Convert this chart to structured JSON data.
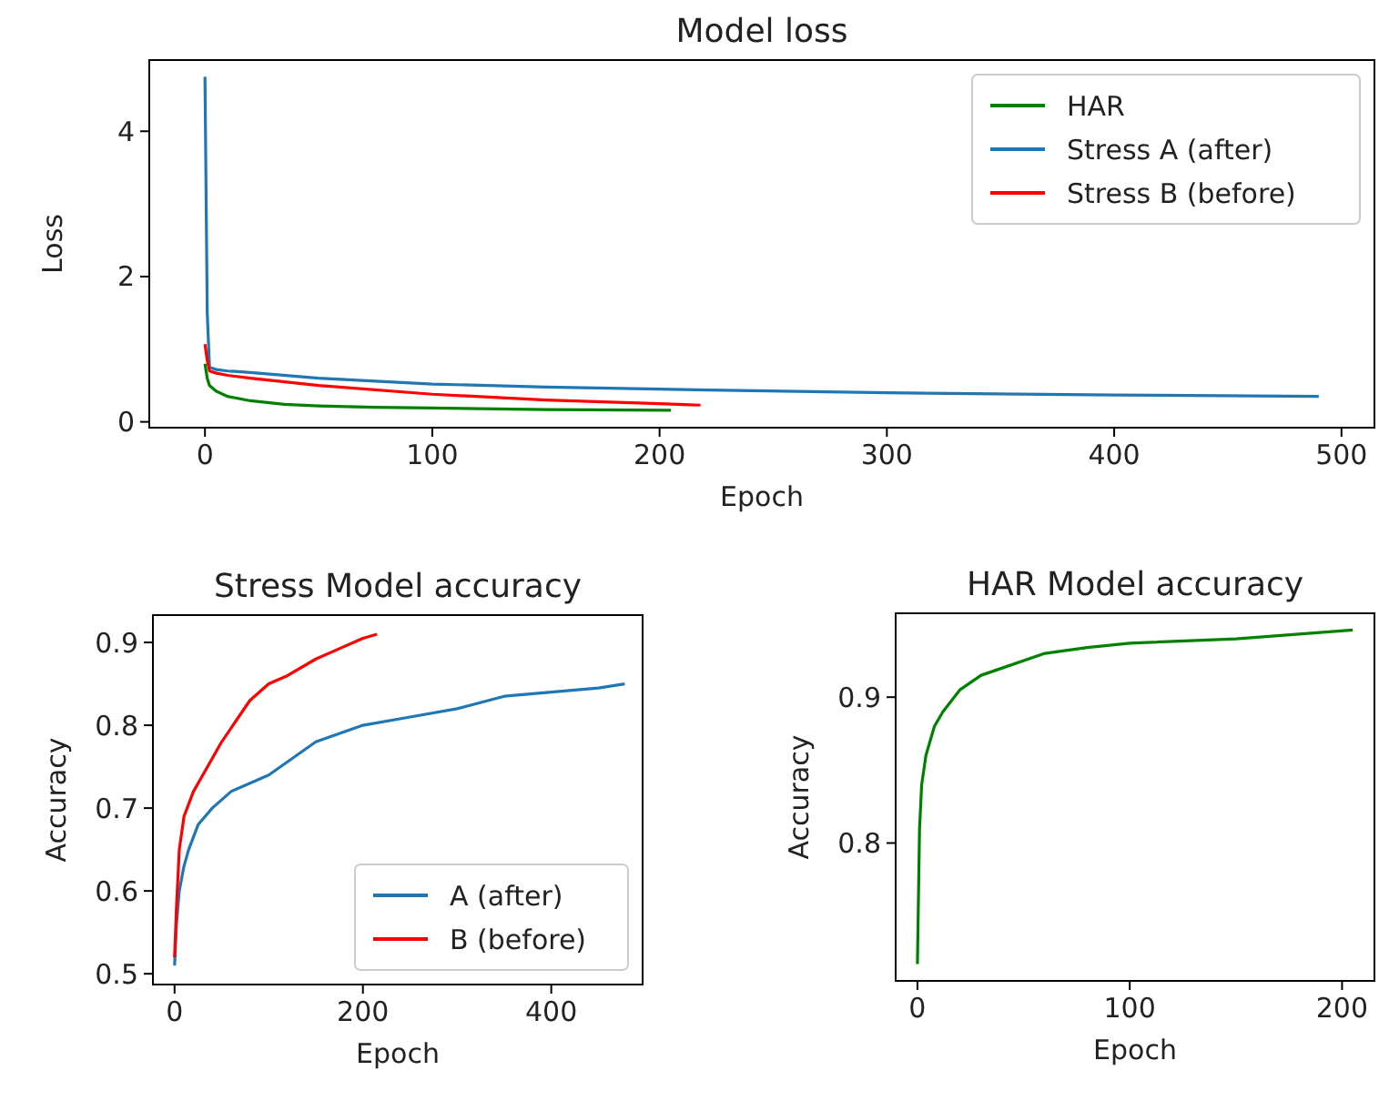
{
  "chart_data": [
    {
      "type": "line",
      "title": "Model loss",
      "xlabel": "Epoch",
      "ylabel": "Loss",
      "xlim": [
        -24.5,
        514.5
      ],
      "ylim": [
        -0.08,
        4.98
      ],
      "xticks": [
        0,
        100,
        200,
        300,
        400,
        500
      ],
      "yticks": [
        0,
        2,
        4
      ],
      "legend": "top right",
      "grid": false,
      "series": [
        {
          "name": "HAR",
          "color": "#008000",
          "x": [
            0,
            1,
            2,
            5,
            10,
            20,
            35,
            50,
            75,
            100,
            150,
            205
          ],
          "values": [
            0.8,
            0.6,
            0.5,
            0.42,
            0.35,
            0.29,
            0.24,
            0.22,
            0.2,
            0.19,
            0.17,
            0.16
          ]
        },
        {
          "name": "Stress A (after)",
          "color": "#1f77b4",
          "x": [
            0,
            1,
            2,
            5,
            10,
            20,
            50,
            100,
            150,
            200,
            300,
            400,
            490
          ],
          "values": [
            4.75,
            1.5,
            0.75,
            0.72,
            0.7,
            0.68,
            0.6,
            0.52,
            0.48,
            0.45,
            0.4,
            0.37,
            0.35
          ]
        },
        {
          "name": "Stress B (before)",
          "color": "#ff0000",
          "x": [
            0,
            1,
            2,
            5,
            10,
            20,
            50,
            100,
            150,
            200,
            218
          ],
          "values": [
            1.07,
            0.85,
            0.7,
            0.67,
            0.64,
            0.6,
            0.5,
            0.38,
            0.3,
            0.25,
            0.23
          ]
        }
      ]
    },
    {
      "type": "line",
      "title": "Stress Model accuracy",
      "xlabel": "Epoch",
      "ylabel": "Accuracy",
      "xlim": [
        -23,
        497
      ],
      "ylim": [
        0.487,
        0.933
      ],
      "xticks": [
        0,
        200,
        400
      ],
      "yticks": [
        0.5,
        0.6,
        0.7,
        0.8,
        0.9
      ],
      "legend": "bottom right",
      "grid": false,
      "series": [
        {
          "name": "A (after)",
          "color": "#1f77b4",
          "x": [
            0,
            2,
            5,
            10,
            15,
            25,
            40,
            60,
            100,
            150,
            200,
            250,
            300,
            350,
            400,
            450,
            478
          ],
          "values": [
            0.51,
            0.56,
            0.6,
            0.63,
            0.65,
            0.68,
            0.7,
            0.72,
            0.74,
            0.78,
            0.8,
            0.81,
            0.82,
            0.835,
            0.84,
            0.845,
            0.85
          ]
        },
        {
          "name": "B (before)",
          "color": "#ff0000",
          "x": [
            0,
            2,
            5,
            10,
            20,
            30,
            50,
            80,
            100,
            120,
            150,
            170,
            200,
            215
          ],
          "values": [
            0.52,
            0.58,
            0.65,
            0.69,
            0.72,
            0.74,
            0.78,
            0.83,
            0.85,
            0.86,
            0.88,
            0.89,
            0.905,
            0.91
          ]
        }
      ]
    },
    {
      "type": "line",
      "title": "HAR Model accuracy",
      "xlabel": "Epoch",
      "ylabel": "Accuracy",
      "xlim": [
        -10.25,
        215.25
      ],
      "ylim": [
        0.7055,
        0.9575
      ],
      "xticks": [
        0,
        100,
        200
      ],
      "yticks": [
        0.8,
        0.9
      ],
      "legend": false,
      "grid": false,
      "series": [
        {
          "color": "#008000",
          "x": [
            0,
            1,
            2,
            4,
            8,
            12,
            20,
            30,
            40,
            60,
            80,
            100,
            150,
            205
          ],
          "values": [
            0.717,
            0.81,
            0.84,
            0.86,
            0.88,
            0.89,
            0.905,
            0.915,
            0.92,
            0.93,
            0.934,
            0.937,
            0.94,
            0.946
          ]
        }
      ]
    }
  ]
}
